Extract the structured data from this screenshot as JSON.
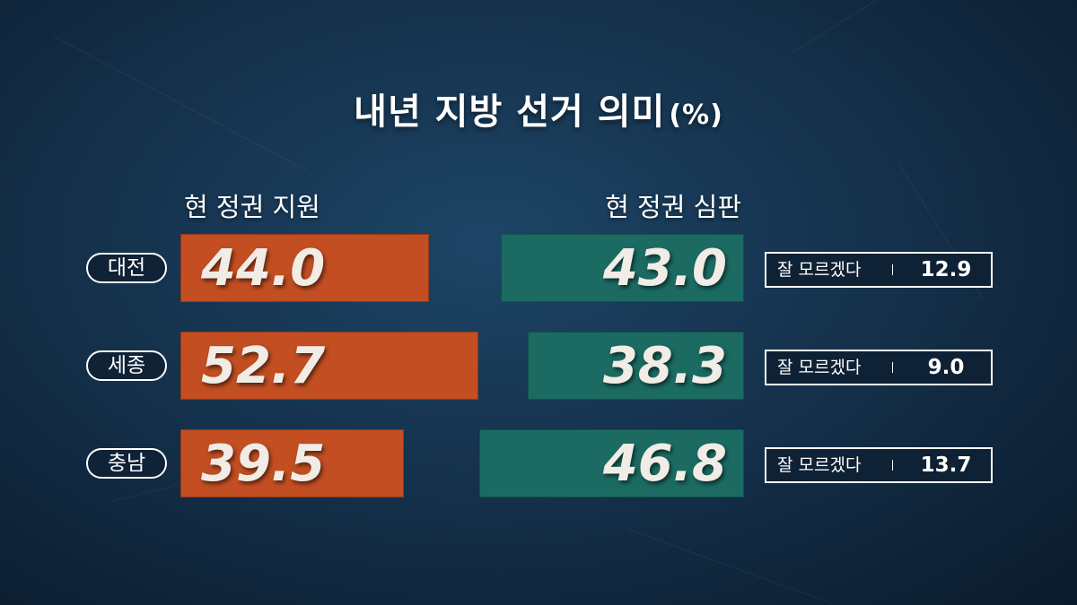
{
  "title": "내년 지방 선거 의미",
  "title_unit": "(%)",
  "colors": {
    "support": "#c24e22",
    "judgement": "#1b6b63",
    "background": "#15324d"
  },
  "chart_data": {
    "type": "bar",
    "title": "내년 지방 선거 의미 (%)",
    "categories": [
      "대전",
      "세종",
      "충남"
    ],
    "series": [
      {
        "name": "현 정권 지원",
        "values": [
          44.0,
          52.7,
          39.5
        ]
      },
      {
        "name": "현 정권 심판",
        "values": [
          43.0,
          38.3,
          46.8
        ]
      },
      {
        "name": "잘 모르겠다",
        "values": [
          12.9,
          9.0,
          13.7
        ]
      }
    ],
    "value_labels": {
      "support": [
        "44.0",
        "52.7",
        "39.5"
      ],
      "judgement": [
        "43.0",
        "38.3",
        "46.8"
      ],
      "dont_know": [
        "12.9",
        "9.0",
        "13.7"
      ]
    },
    "dont_know_label": "잘 모르겠다"
  }
}
